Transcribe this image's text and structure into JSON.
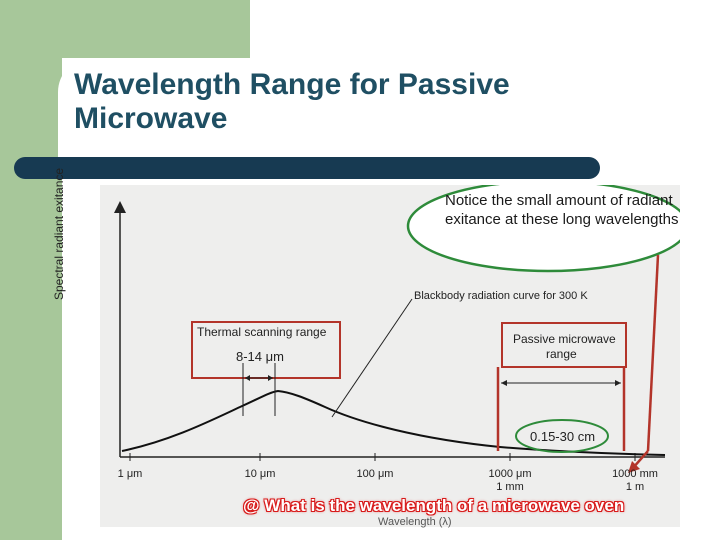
{
  "slide": {
    "title": "Wavelength Range for Passive Microwave",
    "colors": {
      "sidebar": "#a7c79a",
      "title_text": "#1f4f63",
      "title_bar": "#173a52",
      "annotation_red": "#b3342a",
      "annotation_green": "#2e8b3a"
    }
  },
  "figure": {
    "y_axis_label": "Spectral radiant exitance",
    "x_axis_label": "Wavelength (λ)",
    "curve_label": "Blackbody radiation curve for 300 K",
    "thermal_box": {
      "title": "Thermal scanning range",
      "range": "8-14 μm"
    },
    "microwave_box": {
      "title": "Passive microwave",
      "subtitle": "range"
    },
    "range_oval": "0.15-30 cm",
    "ticks": [
      {
        "main": "1 μm",
        "sub": ""
      },
      {
        "main": "10 μm",
        "sub": ""
      },
      {
        "main": "100 μm",
        "sub": ""
      },
      {
        "main": "1000 μm",
        "sub": "1 mm"
      },
      {
        "main": "1000 mm",
        "sub": "1 m"
      }
    ]
  },
  "callout": {
    "text": "Notice the small amount of radiant exitance at these long wavelengths"
  },
  "caption": {
    "text": "@ What is the wavelength of a microwave oven"
  }
}
